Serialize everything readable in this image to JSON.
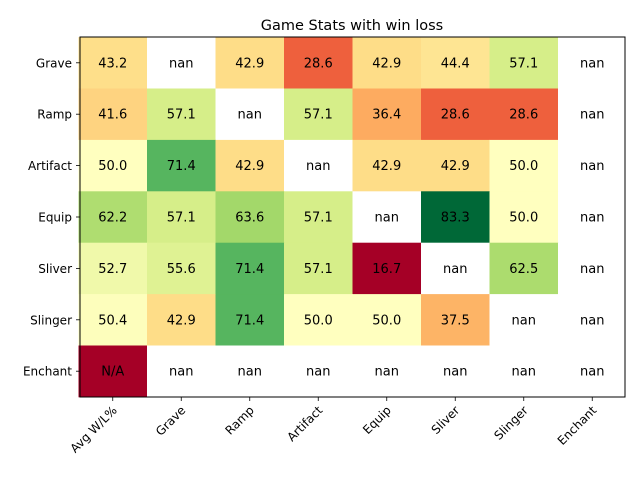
{
  "chart_data": {
    "type": "heatmap",
    "title": "Game Stats with win loss",
    "xlabel": "",
    "ylabel": "",
    "colormap": "RdYlGn",
    "value_range": [
      16.7,
      83.3
    ],
    "missing_color": "#ffffff",
    "columns": [
      "Avg W/L%",
      "Grave",
      "Ramp",
      "Artifact",
      "Equip",
      "Sliver",
      "Slinger",
      "Enchant"
    ],
    "rows": [
      "Grave",
      "Ramp",
      "Artifact",
      "Equip",
      "Sliver",
      "Slinger",
      "Enchant"
    ],
    "values": [
      [
        43.2,
        null,
        42.9,
        28.6,
        42.9,
        44.4,
        57.1,
        null
      ],
      [
        41.6,
        57.1,
        null,
        57.1,
        36.4,
        28.6,
        28.6,
        null
      ],
      [
        50.0,
        71.4,
        42.9,
        null,
        42.9,
        42.9,
        50.0,
        null
      ],
      [
        62.2,
        57.1,
        63.6,
        57.1,
        null,
        83.3,
        50.0,
        null
      ],
      [
        52.7,
        55.6,
        71.4,
        57.1,
        16.7,
        null,
        62.5,
        null
      ],
      [
        50.4,
        42.9,
        71.4,
        50.0,
        50.0,
        37.5,
        null,
        null
      ],
      [
        null,
        null,
        null,
        null,
        null,
        null,
        null,
        null
      ]
    ],
    "labels": [
      [
        "43.2",
        "nan",
        "42.9",
        "28.6",
        "42.9",
        "44.4",
        "57.1",
        "nan"
      ],
      [
        "41.6",
        "57.1",
        "nan",
        "57.1",
        "36.4",
        "28.6",
        "28.6",
        "nan"
      ],
      [
        "50.0",
        "71.4",
        "42.9",
        "nan",
        "42.9",
        "42.9",
        "50.0",
        "nan"
      ],
      [
        "62.2",
        "57.1",
        "63.6",
        "57.1",
        "nan",
        "83.3",
        "50.0",
        "nan"
      ],
      [
        "52.7",
        "55.6",
        "71.4",
        "57.1",
        "16.7",
        "nan",
        "62.5",
        "nan"
      ],
      [
        "50.4",
        "42.9",
        "71.4",
        "50.0",
        "50.0",
        "37.5",
        "nan",
        "nan"
      ],
      [
        "N/A",
        "nan",
        "nan",
        "nan",
        "nan",
        "nan",
        "nan",
        "nan"
      ]
    ],
    "special_cells": [
      {
        "row": 6,
        "col": 0,
        "color": "#a50026"
      }
    ],
    "grid": false,
    "legend": "none"
  }
}
